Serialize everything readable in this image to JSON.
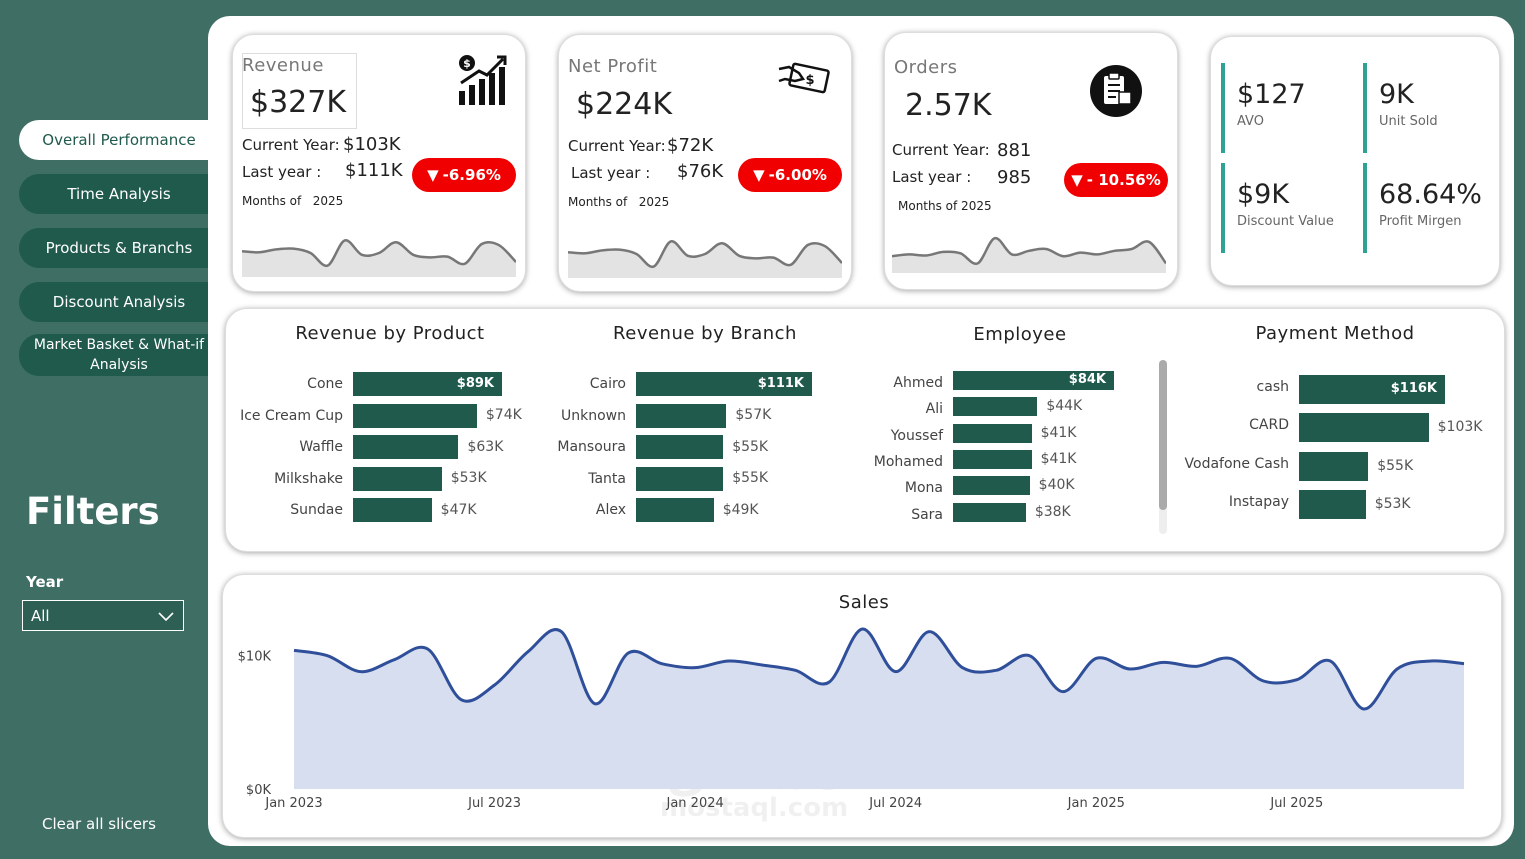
{
  "nav": {
    "items": [
      {
        "label": "Overall Performance"
      },
      {
        "label": "Time Analysis"
      },
      {
        "label": "Products & Branchs"
      },
      {
        "label": "Discount Analysis"
      },
      {
        "label": "Market Basket & What-if Analysis"
      }
    ]
  },
  "filters": {
    "title": "Filters",
    "year_label": "Year",
    "year_value": "All",
    "clear_label": "Clear all slicers"
  },
  "kpis": {
    "revenue": {
      "label": "Revenue",
      "value": "$327K",
      "current_label": "Current Year:",
      "current_value": "$103K",
      "last_label": "Last year :",
      "last_value": "$111K",
      "change": "-6.96%",
      "months_label": "Months of",
      "months_year": "2025",
      "icon": "revenue-chart-icon",
      "trend": [
        0.55,
        0.52,
        0.6,
        0.62,
        0.5,
        0.15,
        0.85,
        0.45,
        0.5,
        0.8,
        0.45,
        0.38,
        0.4,
        0.2,
        0.75,
        0.72,
        0.25
      ]
    },
    "net_profit": {
      "label": "Net Profit",
      "value": "$224K",
      "current_label": "Current Year:",
      "current_value": "$72K",
      "last_label": "Last year :",
      "last_value": "$76K",
      "change": "-6.00%",
      "months_label": "Months of",
      "months_year": "2025",
      "icon": "money-hand-icon",
      "trend": [
        0.55,
        0.52,
        0.6,
        0.62,
        0.5,
        0.15,
        0.85,
        0.45,
        0.5,
        0.8,
        0.45,
        0.38,
        0.4,
        0.2,
        0.75,
        0.72,
        0.25
      ]
    },
    "orders": {
      "label": "Orders",
      "value": "2.57K",
      "current_label": "Current Year:",
      "current_value": "881",
      "last_label": "Last year :",
      "last_value": "985",
      "change": "- 10.56%",
      "months_label": "Months of 2025",
      "months_year": "",
      "icon": "clipboard-box-icon",
      "trend": [
        0.3,
        0.35,
        0.32,
        0.42,
        0.38,
        0.1,
        0.8,
        0.35,
        0.45,
        0.5,
        0.3,
        0.4,
        0.35,
        0.45,
        0.5,
        0.7,
        0.1
      ]
    }
  },
  "mini_kpis": [
    {
      "value": "$127",
      "label": "AVO"
    },
    {
      "value": "9K",
      "label": "Unit Sold"
    },
    {
      "value": "$9K",
      "label": "Discount Value"
    },
    {
      "value": "68.64%",
      "label": "Profit Mirgen"
    }
  ],
  "charts": {
    "product": {
      "title": "Revenue by Product",
      "items": [
        {
          "name": "Cone",
          "value": 89,
          "label": "$89K"
        },
        {
          "name": "Ice Cream Cup",
          "value": 74,
          "label": "$74K"
        },
        {
          "name": "Waffle",
          "value": 63,
          "label": "$63K"
        },
        {
          "name": "Milkshake",
          "value": 53,
          "label": "$53K"
        },
        {
          "name": "Sundae",
          "value": 47,
          "label": "$47K"
        }
      ]
    },
    "branch": {
      "title": "Revenue by Branch",
      "items": [
        {
          "name": "Cairo",
          "value": 111,
          "label": "$111K"
        },
        {
          "name": "Unknown",
          "value": 57,
          "label": "$57K"
        },
        {
          "name": "Mansoura",
          "value": 55,
          "label": "$55K"
        },
        {
          "name": "Tanta",
          "value": 55,
          "label": "$55K"
        },
        {
          "name": "Alex",
          "value": 49,
          "label": "$49K"
        }
      ]
    },
    "employee": {
      "title": "Employee",
      "items": [
        {
          "name": "Ahmed",
          "value": 84,
          "label": "$84K"
        },
        {
          "name": "Ali",
          "value": 44,
          "label": "$44K"
        },
        {
          "name": "Youssef",
          "value": 41,
          "label": "$41K"
        },
        {
          "name": "Mohamed",
          "value": 41,
          "label": "$41K"
        },
        {
          "name": "Mona",
          "value": 40,
          "label": "$40K"
        },
        {
          "name": "Sara",
          "value": 38,
          "label": "$38K"
        }
      ]
    },
    "payment": {
      "title": "Payment Method",
      "items": [
        {
          "name": "cash",
          "value": 116,
          "label": "$116K"
        },
        {
          "name": "CARD",
          "value": 103,
          "label": "$103K"
        },
        {
          "name": "Vodafone Cash",
          "value": 55,
          "label": "$55K"
        },
        {
          "name": "Instapay",
          "value": 53,
          "label": "$53K"
        }
      ]
    }
  },
  "sales": {
    "title": "Sales",
    "y_ticks": [
      "$10K",
      "$0K"
    ],
    "x_ticks": [
      "Jan 2023",
      "Jul 2023",
      "Jan 2024",
      "Jul 2024",
      "Jan 2025",
      "Jul 2025"
    ]
  },
  "watermark": {
    "arabic": "مستقل",
    "latin": "mostaql.com"
  },
  "chart_data": {
    "type": "area",
    "title": "Sales",
    "xlabel": "",
    "ylabel": "",
    "x": [
      "2023-01",
      "2023-02",
      "2023-03",
      "2023-04",
      "2023-05",
      "2023-06",
      "2023-07",
      "2023-08",
      "2023-09",
      "2023-10",
      "2023-11",
      "2023-12",
      "2024-01",
      "2024-02",
      "2024-03",
      "2024-04",
      "2024-05",
      "2024-06",
      "2024-07",
      "2024-08",
      "2024-09",
      "2024-10",
      "2024-11",
      "2024-12",
      "2025-01",
      "2025-02",
      "2025-03",
      "2025-04",
      "2025-05",
      "2025-06",
      "2025-07",
      "2025-08",
      "2025-09",
      "2025-10",
      "2025-11",
      "2025-12"
    ],
    "y": [
      10.4,
      10.0,
      8.8,
      9.7,
      10.5,
      6.7,
      7.8,
      10.3,
      11.8,
      6.4,
      10.2,
      9.4,
      9.1,
      9.6,
      9.3,
      8.9,
      8.0,
      12.0,
      8.8,
      11.8,
      9.1,
      8.9,
      10.0,
      7.3,
      9.8,
      9.0,
      9.5,
      9.2,
      9.8,
      8.1,
      8.2,
      9.6,
      6.0,
      9.0,
      9.6,
      9.4
    ],
    "ylim": [
      0,
      12
    ],
    "grid": false
  }
}
